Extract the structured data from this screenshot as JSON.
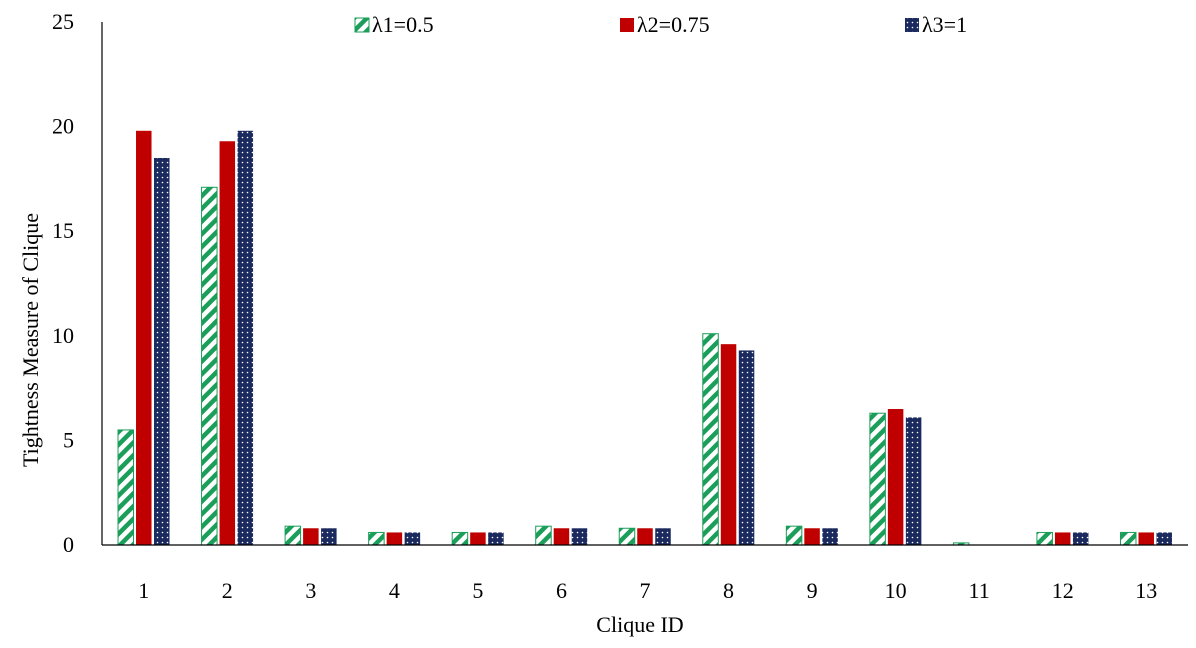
{
  "chart_data": {
    "type": "bar",
    "title": "",
    "xlabel": "Clique ID",
    "ylabel": "Tightness Measure of Clique",
    "categories": [
      "1",
      "2",
      "3",
      "4",
      "5",
      "6",
      "7",
      "8",
      "9",
      "10",
      "11",
      "12",
      "13"
    ],
    "ylim": [
      0,
      25
    ],
    "yticks": [
      0,
      5,
      10,
      15,
      20,
      25
    ],
    "grid": false,
    "legend_position": "top",
    "series": [
      {
        "name": "λ1=0.5",
        "pattern": "diagonal-hatch",
        "color": "#1a9e5a",
        "values": [
          5.5,
          17.1,
          0.9,
          0.6,
          0.6,
          0.9,
          0.8,
          10.1,
          0.9,
          6.3,
          0.1,
          0.6,
          0.6
        ]
      },
      {
        "name": "λ2=0.75",
        "pattern": "solid",
        "color": "#c00000",
        "values": [
          19.8,
          19.3,
          0.8,
          0.6,
          0.6,
          0.8,
          0.8,
          9.6,
          0.8,
          6.5,
          0.0,
          0.6,
          0.6
        ]
      },
      {
        "name": "λ3=1",
        "pattern": "dotted",
        "color": "#1b2a5e",
        "values": [
          18.5,
          19.8,
          0.8,
          0.6,
          0.6,
          0.8,
          0.8,
          9.3,
          0.8,
          6.1,
          0.0,
          0.6,
          0.6
        ]
      }
    ]
  }
}
